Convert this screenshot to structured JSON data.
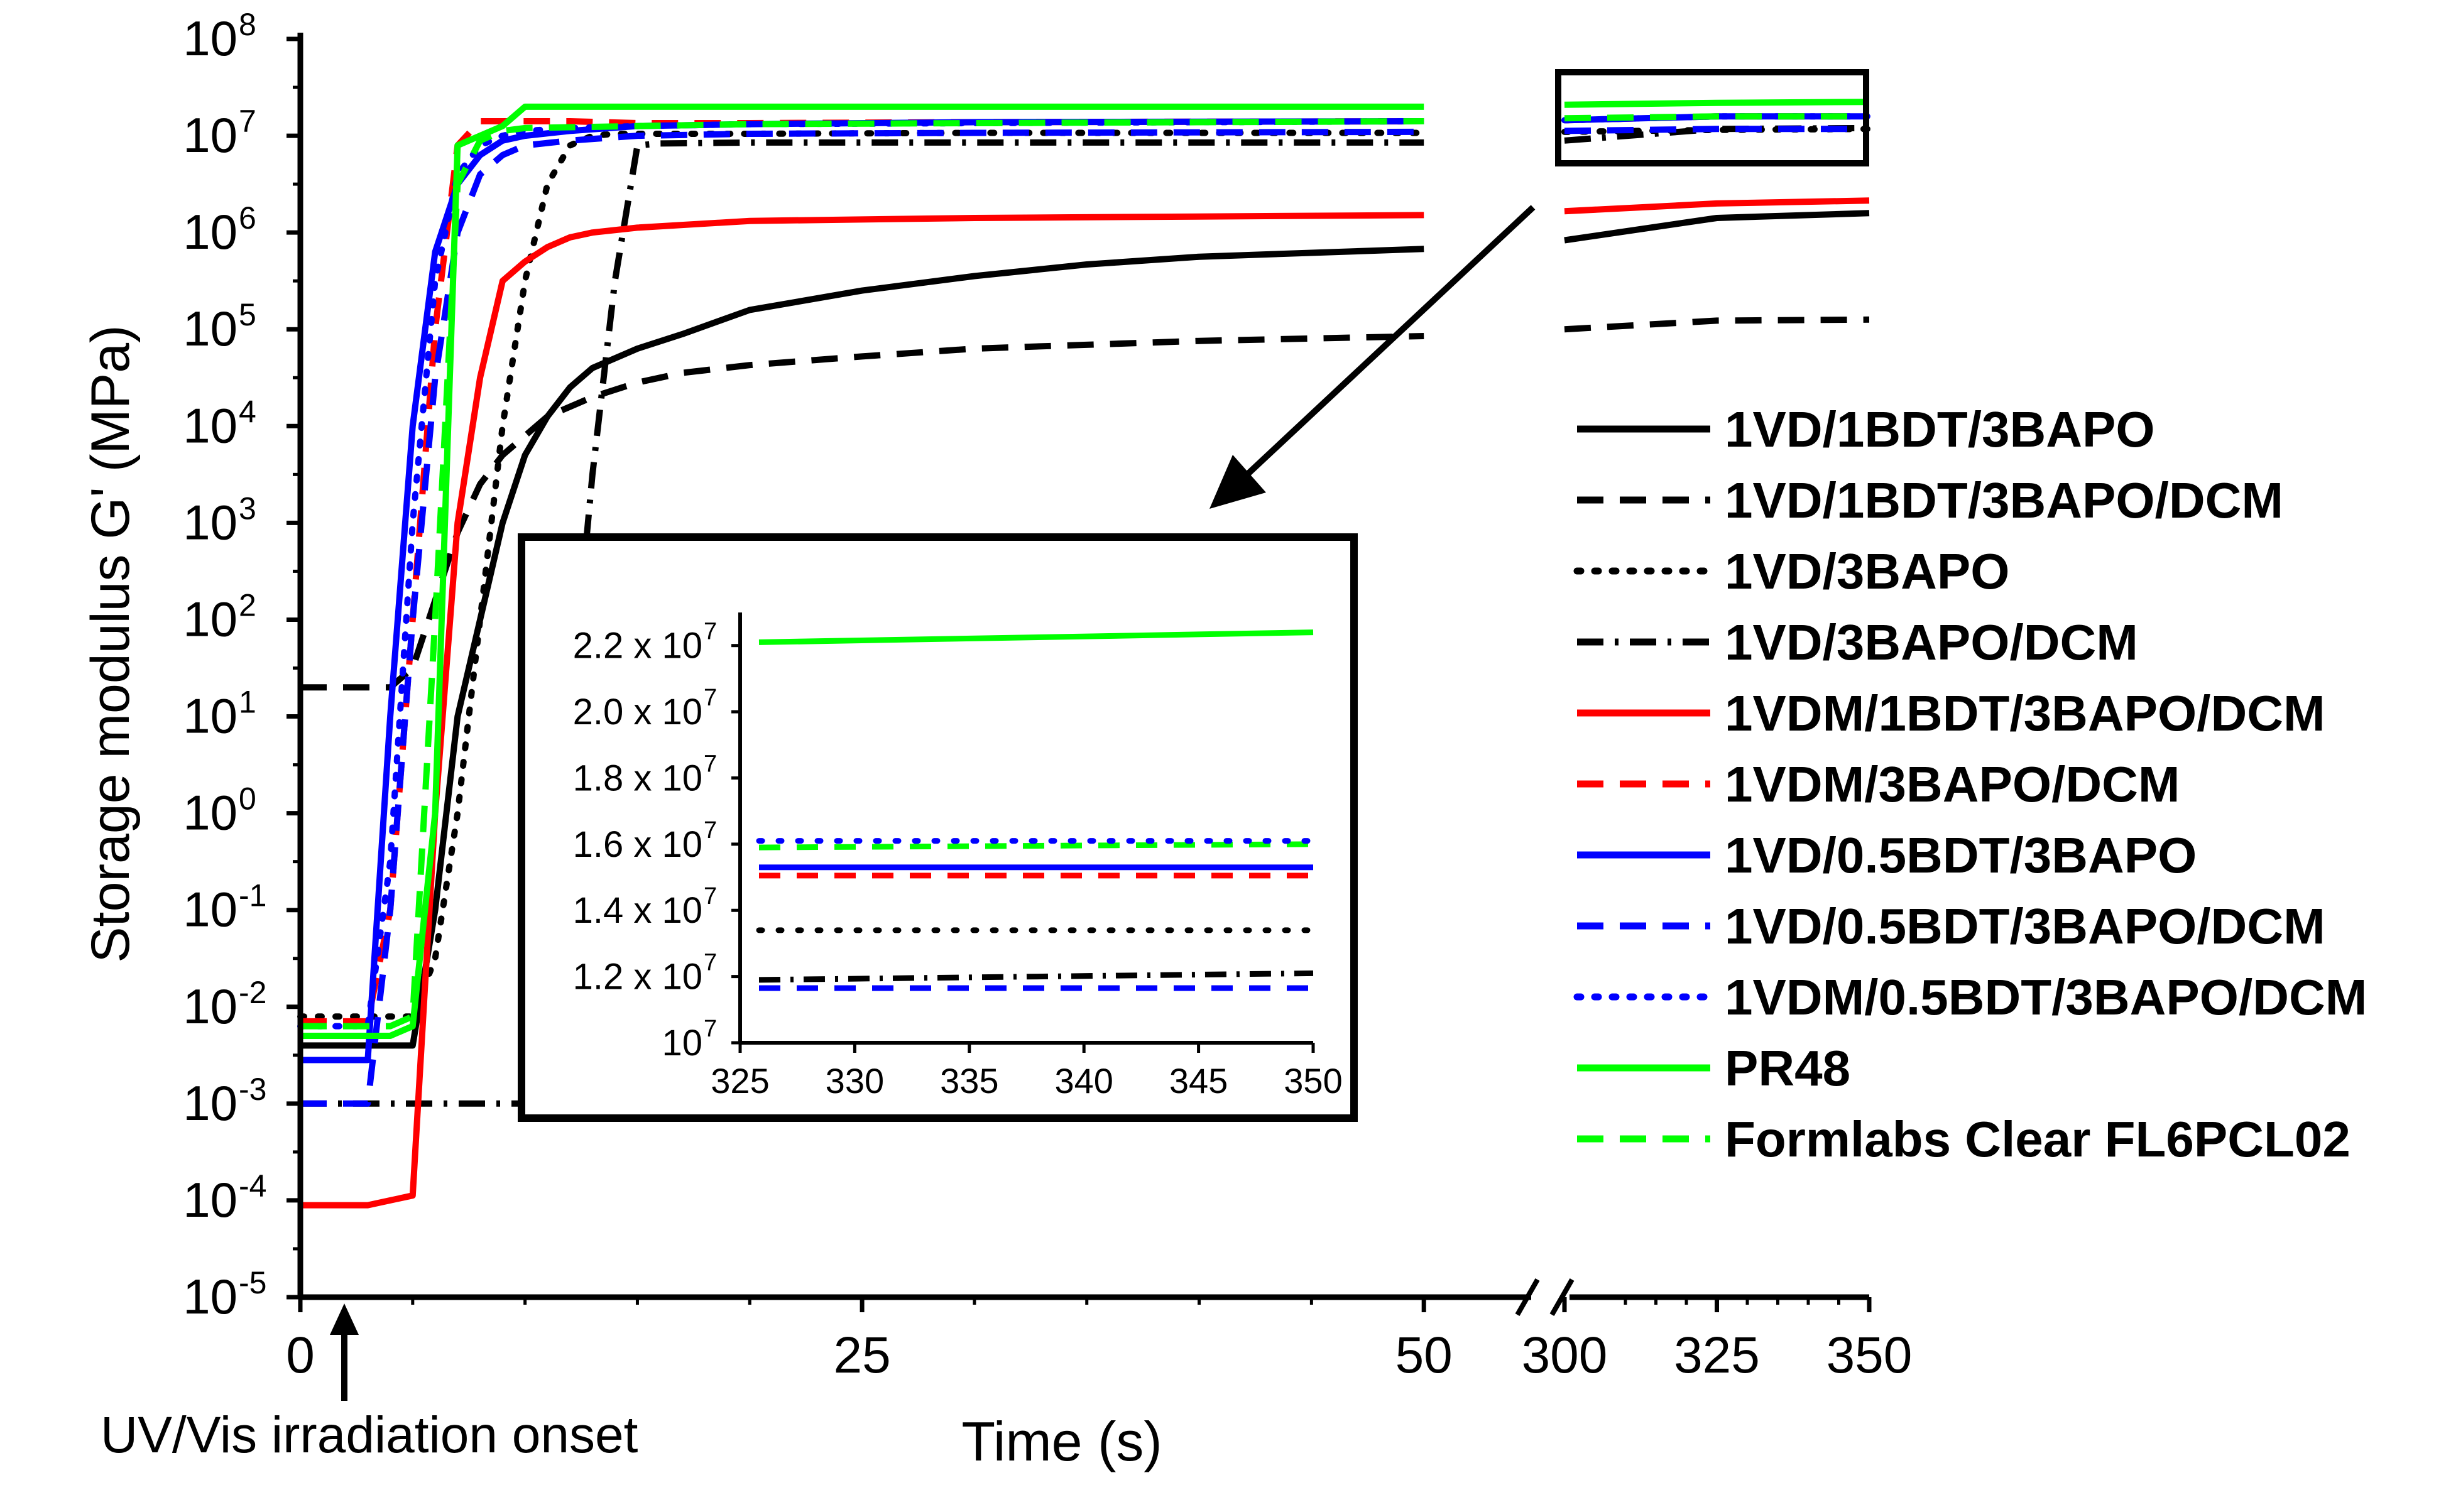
{
  "chart_data": {
    "type": "line",
    "xlabel": "Time (s)",
    "ylabel": "Storage modulus G' (MPa)",
    "yscale": "log",
    "ylim_exponents": [
      -5,
      8
    ],
    "y_tick_base": "10",
    "y_tick_exponents": [
      "8",
      "7",
      "6",
      "5",
      "4",
      "3",
      "2",
      "1",
      "0",
      "-1",
      "-2",
      "-3",
      "-4",
      "-5"
    ],
    "x_axis_break": [
      55,
      300
    ],
    "x_ticks": [
      "0",
      "25",
      "50",
      "300",
      "325",
      "350"
    ],
    "annotation": "UV/Vis irradiation onset",
    "annotation_x": 2.5,
    "series": [
      {
        "name": "1VD/1BDT/3BAPO",
        "color": "#000000",
        "dash": "solid",
        "points": [
          [
            0,
            -2.4
          ],
          [
            1,
            -2.4
          ],
          [
            2,
            -2.4
          ],
          [
            3,
            -2.4
          ],
          [
            4,
            -2.4
          ],
          [
            5,
            -2.4
          ],
          [
            6,
            -1
          ],
          [
            7,
            1
          ],
          [
            8,
            2
          ],
          [
            9,
            3
          ],
          [
            10,
            3.7
          ],
          [
            11,
            4.1
          ],
          [
            12,
            4.4
          ],
          [
            13,
            4.6
          ],
          [
            15,
            4.8
          ],
          [
            17,
            4.95
          ],
          [
            20,
            5.2
          ],
          [
            25,
            5.4
          ],
          [
            30,
            5.55
          ],
          [
            35,
            5.67
          ],
          [
            40,
            5.75
          ],
          [
            50,
            5.83
          ],
          [
            300,
            5.92
          ],
          [
            325,
            6.15
          ],
          [
            350,
            6.2
          ]
        ]
      },
      {
        "name": "1VD/1BDT/3BAPO/DCM",
        "color": "#000000",
        "dash": "dash",
        "points": [
          [
            0,
            1.3
          ],
          [
            2,
            1.3
          ],
          [
            3,
            1.3
          ],
          [
            4,
            1.3
          ],
          [
            5,
            1.5
          ],
          [
            6,
            2.2
          ],
          [
            7,
            2.9
          ],
          [
            8,
            3.4
          ],
          [
            9,
            3.7
          ],
          [
            10,
            3.9
          ],
          [
            11,
            4.1
          ],
          [
            12,
            4.2
          ],
          [
            13,
            4.3
          ],
          [
            15,
            4.45
          ],
          [
            17,
            4.55
          ],
          [
            20,
            4.63
          ],
          [
            25,
            4.72
          ],
          [
            30,
            4.8
          ],
          [
            40,
            4.88
          ],
          [
            50,
            4.93
          ],
          [
            300,
            5
          ],
          [
            325,
            5.09
          ],
          [
            350,
            5.1
          ]
        ]
      },
      {
        "name": "1VD/3BAPO",
        "color": "#000000",
        "dash": "dot",
        "points": [
          [
            0,
            -2.1
          ],
          [
            2,
            -2.1
          ],
          [
            4,
            -2.1
          ],
          [
            5,
            -2.1
          ],
          [
            6,
            -1.5
          ],
          [
            7,
            0
          ],
          [
            8,
            2
          ],
          [
            9,
            4
          ],
          [
            10,
            5.5
          ],
          [
            11,
            6.5
          ],
          [
            12,
            6.9
          ],
          [
            13,
            7
          ],
          [
            14,
            7.02
          ],
          [
            15,
            7.02
          ],
          [
            20,
            7.02
          ],
          [
            30,
            7.03
          ],
          [
            50,
            7.03
          ],
          [
            300,
            7.04
          ],
          [
            325,
            7.06
          ],
          [
            350,
            7.07
          ]
        ]
      },
      {
        "name": "1VD/3BAPO/DCM",
        "color": "#000000",
        "dash": "dashdot",
        "points": [
          [
            0,
            -3
          ],
          [
            2,
            -3
          ],
          [
            4,
            -3
          ],
          [
            6,
            -3
          ],
          [
            8,
            -3
          ],
          [
            10,
            -3
          ],
          [
            11,
            -2
          ],
          [
            12,
            1
          ],
          [
            13,
            3.5
          ],
          [
            14,
            5.5
          ],
          [
            15,
            6.9
          ],
          [
            16,
            6.92
          ],
          [
            20,
            6.93
          ],
          [
            30,
            6.93
          ],
          [
            50,
            6.93
          ],
          [
            300,
            6.95
          ],
          [
            325,
            7.07
          ],
          [
            350,
            7.08
          ]
        ]
      },
      {
        "name": "1VDM/1BDT/3BAPO/DCM",
        "color": "#ff0000",
        "dash": "solid",
        "points": [
          [
            0,
            -4.05
          ],
          [
            1,
            -4.05
          ],
          [
            2,
            -4.05
          ],
          [
            3,
            -4.05
          ],
          [
            4,
            -4
          ],
          [
            5,
            -3.95
          ],
          [
            6,
            0
          ],
          [
            7,
            3
          ],
          [
            8,
            4.5
          ],
          [
            9,
            5.5
          ],
          [
            10,
            5.7
          ],
          [
            11,
            5.85
          ],
          [
            12,
            5.95
          ],
          [
            13,
            6
          ],
          [
            15,
            6.05
          ],
          [
            20,
            6.12
          ],
          [
            30,
            6.15
          ],
          [
            50,
            6.18
          ],
          [
            300,
            6.22
          ],
          [
            325,
            6.3
          ],
          [
            350,
            6.33
          ]
        ]
      },
      {
        "name": "1VDM/3BAPO/DCM",
        "color": "#ff0000",
        "dash": "dash",
        "points": [
          [
            0,
            -2.15
          ],
          [
            2,
            -2.15
          ],
          [
            3,
            -2.15
          ],
          [
            4,
            -1
          ],
          [
            5,
            2
          ],
          [
            6,
            5
          ],
          [
            7,
            6.9
          ],
          [
            8,
            7.15
          ],
          [
            9,
            7.15
          ],
          [
            12,
            7.15
          ],
          [
            15,
            7.13
          ],
          [
            20,
            7.13
          ],
          [
            30,
            7.14
          ],
          [
            50,
            7.15
          ],
          [
            300,
            7.16
          ],
          [
            325,
            7.2
          ],
          [
            350,
            7.2
          ]
        ]
      },
      {
        "name": "1VD/0.5BDT/3BAPO",
        "color": "#0000ff",
        "dash": "solid",
        "points": [
          [
            0,
            -2.55
          ],
          [
            2,
            -2.55
          ],
          [
            3,
            -2.55
          ],
          [
            4,
            1
          ],
          [
            5,
            4
          ],
          [
            6,
            5.8
          ],
          [
            7,
            6.5
          ],
          [
            8,
            6.8
          ],
          [
            9,
            6.95
          ],
          [
            10,
            7
          ],
          [
            12,
            7.05
          ],
          [
            15,
            7.1
          ],
          [
            20,
            7.12
          ],
          [
            30,
            7.14
          ],
          [
            50,
            7.15
          ],
          [
            300,
            7.16
          ],
          [
            325,
            7.2
          ],
          [
            350,
            7.2
          ]
        ]
      },
      {
        "name": "1VD/0.5BDT/3BAPO/DCM",
        "color": "#0000ff",
        "dash": "dash",
        "points": [
          [
            0,
            -3
          ],
          [
            2,
            -3
          ],
          [
            3,
            -3
          ],
          [
            4,
            -1
          ],
          [
            5,
            2
          ],
          [
            6,
            4.5
          ],
          [
            7,
            6
          ],
          [
            8,
            6.6
          ],
          [
            9,
            6.8
          ],
          [
            10,
            6.9
          ],
          [
            12,
            6.95
          ],
          [
            15,
            7
          ],
          [
            20,
            7.02
          ],
          [
            30,
            7.03
          ],
          [
            50,
            7.04
          ],
          [
            300,
            7.05
          ],
          [
            325,
            7.07
          ],
          [
            350,
            7.07
          ]
        ]
      },
      {
        "name": "1VDM/0.5BDT/3BAPO/DCM",
        "color": "#0000ff",
        "dash": "dot",
        "points": [
          [
            0,
            -2.2
          ],
          [
            2,
            -2.2
          ],
          [
            3,
            -2.2
          ],
          [
            4,
            -0.5
          ],
          [
            5,
            3
          ],
          [
            6,
            5.5
          ],
          [
            7,
            6.6
          ],
          [
            8,
            6.9
          ],
          [
            9,
            7
          ],
          [
            10,
            7.05
          ],
          [
            12,
            7.08
          ],
          [
            15,
            7.1
          ],
          [
            20,
            7.12
          ],
          [
            30,
            7.13
          ],
          [
            50,
            7.15
          ],
          [
            300,
            7.16
          ],
          [
            325,
            7.2
          ],
          [
            350,
            7.2
          ]
        ]
      },
      {
        "name": "PR48",
        "color": "#00ff00",
        "dash": "solid",
        "points": [
          [
            0,
            -2.3
          ],
          [
            2,
            -2.3
          ],
          [
            3,
            -2.3
          ],
          [
            4,
            -2.3
          ],
          [
            5,
            -2.2
          ],
          [
            6,
            0
          ],
          [
            7,
            6.9
          ],
          [
            8,
            7
          ],
          [
            9,
            7.1
          ],
          [
            10,
            7.3
          ],
          [
            15,
            7.3
          ],
          [
            20,
            7.3
          ],
          [
            30,
            7.3
          ],
          [
            50,
            7.3
          ],
          [
            300,
            7.32
          ],
          [
            325,
            7.34
          ],
          [
            350,
            7.35
          ]
        ]
      },
      {
        "name": "Formlabs Clear FL6PCL02",
        "color": "#00ff00",
        "dash": "dash",
        "points": [
          [
            0,
            -2.2
          ],
          [
            2,
            -2.2
          ],
          [
            3,
            -2.2
          ],
          [
            4,
            -2.2
          ],
          [
            5,
            -2.1
          ],
          [
            6,
            2
          ],
          [
            7,
            6.5
          ],
          [
            8,
            6.95
          ],
          [
            9,
            7.05
          ],
          [
            10,
            7.08
          ],
          [
            15,
            7.1
          ],
          [
            20,
            7.12
          ],
          [
            30,
            7.13
          ],
          [
            50,
            7.15
          ],
          [
            300,
            7.18
          ],
          [
            325,
            7.2
          ],
          [
            350,
            7.2
          ]
        ]
      }
    ],
    "inset": {
      "xlim": [
        325,
        350
      ],
      "x_ticks": [
        "325",
        "330",
        "335",
        "340",
        "345",
        "350"
      ],
      "y_ticks": [
        {
          "label": "2.2 x 10",
          "exp": "7",
          "value": 22000000
        },
        {
          "label": "2.0 x 10",
          "exp": "7",
          "value": 20000000
        },
        {
          "label": "1.8 x 10",
          "exp": "7",
          "value": 18000000
        },
        {
          "label": "1.6 x 10",
          "exp": "7",
          "value": 16000000
        },
        {
          "label": "1.4 x 10",
          "exp": "7",
          "value": 14000000
        },
        {
          "label": "1.2 x 10",
          "exp": "7",
          "value": 12000000
        },
        {
          "label": "10",
          "exp": "7",
          "value": 10000000
        }
      ],
      "ylim": [
        10000000,
        23000000
      ],
      "lines": [
        {
          "color": "#00ff00",
          "dash": "solid",
          "y1": 22100000,
          "y2": 22400000
        },
        {
          "color": "#00ff00",
          "dash": "dash",
          "y1": 15900000,
          "y2": 16000000
        },
        {
          "color": "#0000ff",
          "dash": "dot",
          "y1": 16100000,
          "y2": 16100000
        },
        {
          "color": "#0000ff",
          "dash": "solid",
          "y1": 15300000,
          "y2": 15300000
        },
        {
          "color": "#ff0000",
          "dash": "dash",
          "y1": 15050000,
          "y2": 15050000
        },
        {
          "color": "#000000",
          "dash": "dot",
          "y1": 13400000,
          "y2": 13400000
        },
        {
          "color": "#000000",
          "dash": "dashdot",
          "y1": 11900000,
          "y2": 12100000
        },
        {
          "color": "#0000ff",
          "dash": "dash",
          "y1": 11650000,
          "y2": 11650000
        }
      ]
    }
  }
}
